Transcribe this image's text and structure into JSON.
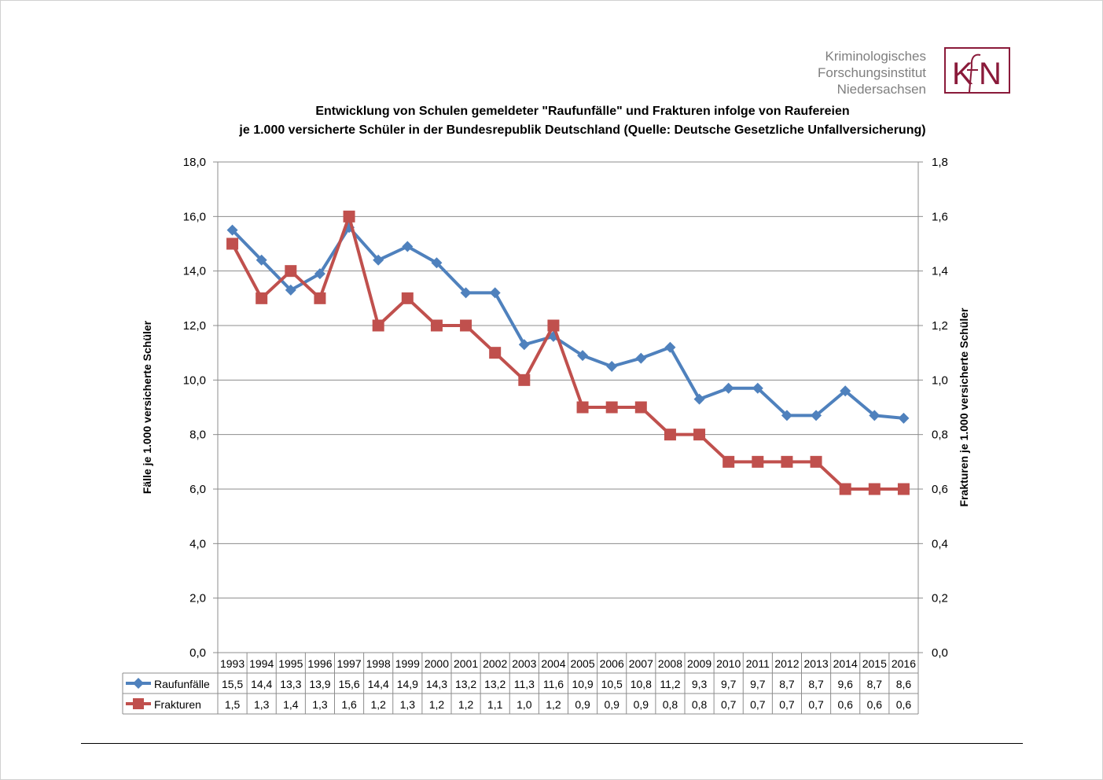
{
  "logo": {
    "line1": "Kriminologisches",
    "line2": "Forschungsinstitut",
    "line3": "Niedersachsen",
    "mark_left": "K",
    "mark_right": "N",
    "brand_color": "#8a1a3a"
  },
  "chart_data": {
    "type": "line",
    "title": "Entwicklung von Schulen gemeldeter \"Raufunfälle\" und Frakturen infolge von Raufereien",
    "subtitle": "je 1.000 versicherte Schüler in der Bundesrepublik Deutschland (Quelle: Deutsche Gesetzliche Unfallversicherung)",
    "ylabel": "Fälle je 1.000 versicherte Schüler",
    "y2label": "Frakturen je 1.000 versicherte Schüler",
    "ylim": [
      0,
      18
    ],
    "y2lim": [
      0,
      1.8
    ],
    "y_ticks": [
      "0,0",
      "2,0",
      "4,0",
      "6,0",
      "8,0",
      "10,0",
      "12,0",
      "14,0",
      "16,0",
      "18,0"
    ],
    "y2_ticks": [
      "0,0",
      "0,2",
      "0,4",
      "0,6",
      "0,8",
      "1,0",
      "1,2",
      "1,4",
      "1,6",
      "1,8"
    ],
    "grid": true,
    "categories": [
      "1993",
      "1994",
      "1995",
      "1996",
      "1997",
      "1998",
      "1999",
      "2000",
      "2001",
      "2002",
      "2003",
      "2004",
      "2005",
      "2006",
      "2007",
      "2008",
      "2009",
      "2010",
      "2011",
      "2012",
      "2013",
      "2014",
      "2015",
      "2016"
    ],
    "series": [
      {
        "name": "Raufunfälle",
        "axis": "left",
        "color": "#4f81bd",
        "marker": "diamond",
        "values": [
          15.5,
          14.4,
          13.3,
          13.9,
          15.6,
          14.4,
          14.9,
          14.3,
          13.2,
          13.2,
          11.3,
          11.6,
          10.9,
          10.5,
          10.8,
          11.2,
          9.3,
          9.7,
          9.7,
          8.7,
          8.7,
          9.6,
          8.7,
          8.6
        ],
        "labels": [
          "15,5",
          "14,4",
          "13,3",
          "13,9",
          "15,6",
          "14,4",
          "14,9",
          "14,3",
          "13,2",
          "13,2",
          "11,3",
          "11,6",
          "10,9",
          "10,5",
          "10,8",
          "11,2",
          "9,3",
          "9,7",
          "9,7",
          "8,7",
          "8,7",
          "9,6",
          "8,7",
          "8,6"
        ]
      },
      {
        "name": "Frakturen",
        "axis": "right",
        "color": "#c0504d",
        "marker": "square",
        "values": [
          1.5,
          1.3,
          1.4,
          1.3,
          1.6,
          1.2,
          1.3,
          1.2,
          1.2,
          1.1,
          1.0,
          1.2,
          0.9,
          0.9,
          0.9,
          0.8,
          0.8,
          0.7,
          0.7,
          0.7,
          0.7,
          0.6,
          0.6,
          0.6
        ],
        "labels": [
          "1,5",
          "1,3",
          "1,4",
          "1,3",
          "1,6",
          "1,2",
          "1,3",
          "1,2",
          "1,2",
          "1,1",
          "1,0",
          "1,2",
          "0,9",
          "0,9",
          "0,9",
          "0,8",
          "0,8",
          "0,7",
          "0,7",
          "0,7",
          "0,7",
          "0,6",
          "0,6",
          "0,6"
        ]
      }
    ]
  }
}
